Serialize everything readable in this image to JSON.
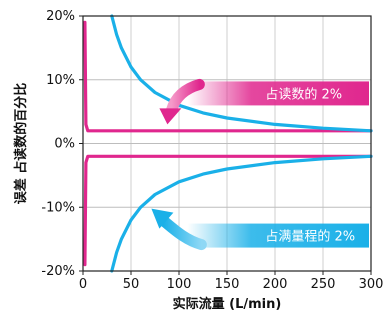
{
  "chart_data": {
    "type": "line",
    "xlabel": "实际流量 (L/min)",
    "ylabel": "误差 占读数的百分比",
    "xlim": [
      0,
      300
    ],
    "ylim": [
      -20,
      20
    ],
    "x_ticks": [
      0,
      50,
      100,
      150,
      200,
      250,
      300
    ],
    "x_tick_labels": [
      "0",
      "50",
      "100",
      "150",
      "200",
      "250",
      "300"
    ],
    "y_ticks": [
      20,
      10,
      0,
      -10,
      -20
    ],
    "y_tick_labels": [
      "20%",
      "10%",
      "0%",
      "-10%",
      "-20%"
    ],
    "grid": true,
    "series": [
      {
        "name": "占读数的 2%",
        "color": "#e0278e",
        "x": [
          2,
          3,
          5,
          8,
          300
        ],
        "y": [
          19,
          3,
          2,
          2,
          2
        ]
      },
      {
        "name": "占读数的 2%",
        "color": "#e0278e",
        "x": [
          2,
          3,
          5,
          8,
          300
        ],
        "y": [
          -19,
          -3,
          -2,
          -2,
          -2
        ]
      },
      {
        "name": "占满量程的 2%",
        "color": "#1ab0e8",
        "x": [
          30,
          35,
          40,
          50,
          60,
          75,
          100,
          125,
          150,
          200,
          250,
          300
        ],
        "y": [
          20,
          17.1,
          15,
          12,
          10,
          8,
          6,
          4.8,
          4,
          3,
          2.4,
          2
        ]
      },
      {
        "name": "占满量程的 2%",
        "color": "#1ab0e8",
        "x": [
          30,
          35,
          40,
          50,
          60,
          75,
          100,
          125,
          150,
          200,
          250,
          300
        ],
        "y": [
          -20,
          -17.1,
          -15,
          -12,
          -10,
          -8,
          -6,
          -4.8,
          -4,
          -3,
          -2.4,
          -2
        ]
      }
    ],
    "annotations": [
      {
        "text": "占读数的 2%",
        "color": "#e0278e",
        "x": 140,
        "y": 7.7
      },
      {
        "text": "占满量程的 2%",
        "color": "#1ab0e8",
        "x": 140,
        "y": -14.6
      }
    ]
  }
}
